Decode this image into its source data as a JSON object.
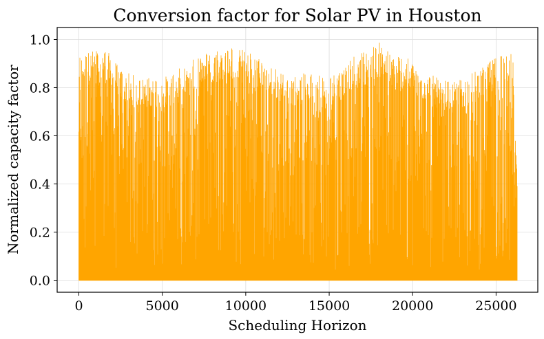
{
  "chart_data": {
    "type": "line",
    "title": "Conversion factor for Solar PV in Houston",
    "xlabel": "Scheduling Horizon",
    "ylabel": "Normalized capacity factor",
    "xlim": [
      -1300,
      27500
    ],
    "ylim": [
      -0.05,
      1.05
    ],
    "xticks": [
      0,
      5000,
      10000,
      15000,
      20000,
      25000
    ],
    "yticks": [
      0.0,
      0.2,
      0.4,
      0.6,
      0.8,
      1.0
    ],
    "grid": true,
    "series_color": "#FFA500",
    "series": [
      {
        "x_start": 0,
        "x_end": 26279,
        "min": 0.0,
        "max": 1.0,
        "daily_peak_envelope_x": [
          0,
          500,
          1000,
          1500,
          2000,
          2500,
          3000,
          3500,
          4000,
          4500,
          5000,
          5500,
          6000,
          6500,
          7000,
          7500,
          8000,
          8500,
          9000,
          9500,
          10000,
          10500,
          11000,
          11500,
          12000,
          12500,
          13000,
          13500,
          14000,
          14500,
          15000,
          15500,
          16000,
          16500,
          17000,
          17500,
          18000,
          18500,
          19000,
          19500,
          20000,
          20500,
          21000,
          21500,
          22000,
          22500,
          23000,
          23500,
          24000,
          24500,
          25000,
          25500,
          26000,
          26279
        ],
        "daily_peak_envelope_y": [
          0.94,
          0.95,
          0.96,
          0.97,
          0.93,
          0.88,
          0.86,
          0.85,
          0.84,
          0.85,
          0.84,
          0.86,
          0.88,
          0.9,
          0.93,
          0.95,
          0.96,
          0.97,
          0.99,
          0.96,
          0.96,
          0.94,
          0.92,
          0.9,
          0.87,
          0.86,
          0.85,
          0.86,
          0.87,
          0.86,
          0.85,
          0.87,
          0.9,
          0.93,
          0.95,
          0.97,
          0.99,
          0.96,
          0.95,
          0.93,
          0.91,
          0.88,
          0.86,
          0.84,
          0.83,
          0.83,
          0.84,
          0.86,
          0.88,
          0.9,
          0.93,
          0.96,
          0.96,
          0.42
        ]
      }
    ]
  }
}
